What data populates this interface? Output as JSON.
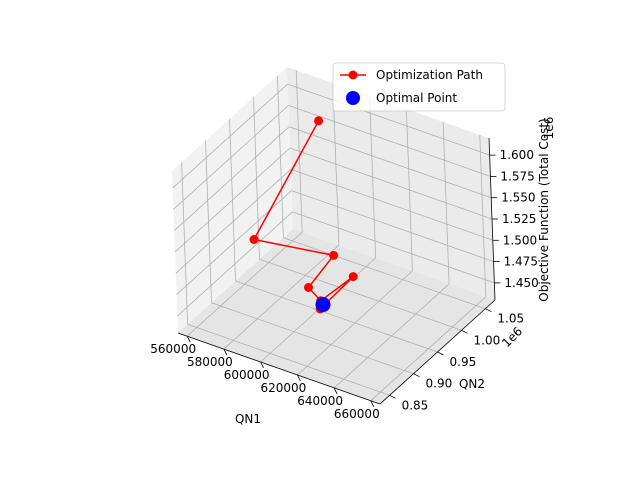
{
  "chart_data": {
    "type": "scatter",
    "projection": "3d",
    "series": [
      {
        "name": "Optimization Path",
        "color": "#ff0000",
        "style": "line-with-markers",
        "x": [
          585000,
          592000,
          611000,
          617000,
          618000,
          605000,
          608000,
          611000
        ],
        "y": [
          1020000,
          855000,
          945000,
          870000,
          890000,
          1005000,
          925000,
          920000
        ],
        "z": [
          1605000,
          1555000,
          1505000,
          1510000,
          1485000,
          1445000,
          1450000,
          1460000
        ]
      },
      {
        "name": "Optimal Point",
        "color": "#0000ff",
        "style": "marker",
        "x": [
          611000
        ],
        "y": [
          920000
        ],
        "z": [
          1460000
        ]
      }
    ],
    "xlabel": "QN1",
    "ylabel": "QN2",
    "zlabel": "Objective Function (Total Cost)",
    "x_ticks": [
      "560000",
      "580000",
      "600000",
      "620000",
      "640000",
      "660000"
    ],
    "y_ticks": [
      "0.85",
      "0.90",
      "0.95",
      "1.00",
      "1.05"
    ],
    "z_ticks": [
      "1.450",
      "1.475",
      "1.500",
      "1.525",
      "1.550",
      "1.575",
      "1.600"
    ],
    "y_offset_text": "1e6",
    "z_offset_text": "1e6",
    "xlim": [
      555000,
      665000
    ],
    "ylim": [
      830000,
      1070000
    ],
    "zlim": [
      1430000,
      1620000
    ],
    "grid": true,
    "legend_position": "top-right"
  }
}
